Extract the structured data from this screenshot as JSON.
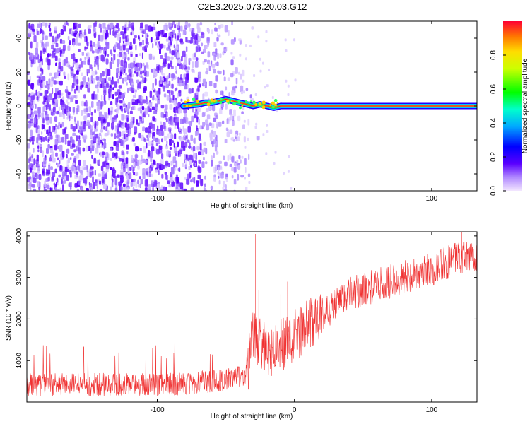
{
  "title": "C2E3.2025.073.20.03.G12",
  "chart_data": [
    {
      "type": "heatmap",
      "xlabel": "Height of straight line (km)",
      "ylabel": "Frequency (Hz)",
      "xlim": [
        -195,
        133
      ],
      "ylim": [
        -50,
        50
      ],
      "xticks": [
        -100,
        0,
        100
      ],
      "xtick_labels": [
        "-100",
        "",
        "100"
      ],
      "yticks": [
        -40,
        -20,
        0,
        20,
        40
      ],
      "ytick_labels": [
        "-40",
        "-20",
        "0",
        "20",
        "40"
      ],
      "colorbar": {
        "label": "Normalized spectral amplitude",
        "range": [
          0,
          1
        ],
        "ticks": [
          0.0,
          0.2,
          0.4,
          0.6,
          0.8
        ],
        "tick_labels": [
          "0.0",
          "0.2",
          "0.4",
          "0.6",
          "0.8"
        ]
      },
      "noise_region_x": [
        -195,
        -47
      ],
      "signal_line": {
        "x_start": -81,
        "x_end": 133,
        "frequency": 0,
        "trace": [
          [
            -81,
            0
          ],
          [
            -75,
            0.5
          ],
          [
            -70,
            1
          ],
          [
            -65,
            2
          ],
          [
            -60,
            2
          ],
          [
            -55,
            3
          ],
          [
            -50,
            4
          ],
          [
            -45,
            3
          ],
          [
            -40,
            2
          ],
          [
            -35,
            1
          ],
          [
            -30,
            0
          ],
          [
            -25,
            1
          ],
          [
            -20,
            0
          ],
          [
            -15,
            -1
          ],
          [
            -10,
            0
          ],
          [
            0,
            0
          ],
          [
            20,
            0
          ],
          [
            133,
            0
          ]
        ]
      }
    },
    {
      "type": "line",
      "xlabel": "Height of straight line (km)",
      "ylabel": "SNR (10 * v/v)",
      "xlim": [
        -195,
        133
      ],
      "ylim": [
        0,
        4100
      ],
      "xticks": [
        -100,
        0,
        100
      ],
      "xtick_labels": [
        "-100",
        "0",
        "100"
      ],
      "yticks": [
        1000,
        2000,
        3000,
        4000
      ],
      "ytick_labels": [
        "1000",
        "2000",
        "3000",
        "4000"
      ],
      "color": "#f03232",
      "trend": [
        [
          -195,
          420
        ],
        [
          -150,
          420
        ],
        [
          -100,
          420
        ],
        [
          -70,
          460
        ],
        [
          -50,
          550
        ],
        [
          -40,
          600
        ],
        [
          -35,
          650
        ],
        [
          -30,
          1600
        ],
        [
          -20,
          1200
        ],
        [
          -10,
          1350
        ],
        [
          0,
          1600
        ],
        [
          20,
          2100
        ],
        [
          40,
          2600
        ],
        [
          60,
          2800
        ],
        [
          80,
          3000
        ],
        [
          100,
          3200
        ],
        [
          120,
          3450
        ],
        [
          133,
          3500
        ]
      ],
      "spikes": [
        [
          -28.5,
          4050
        ],
        [
          -26,
          2700
        ],
        [
          -10,
          2600
        ],
        [
          -5,
          2900
        ],
        [
          122,
          4100
        ]
      ]
    }
  ]
}
